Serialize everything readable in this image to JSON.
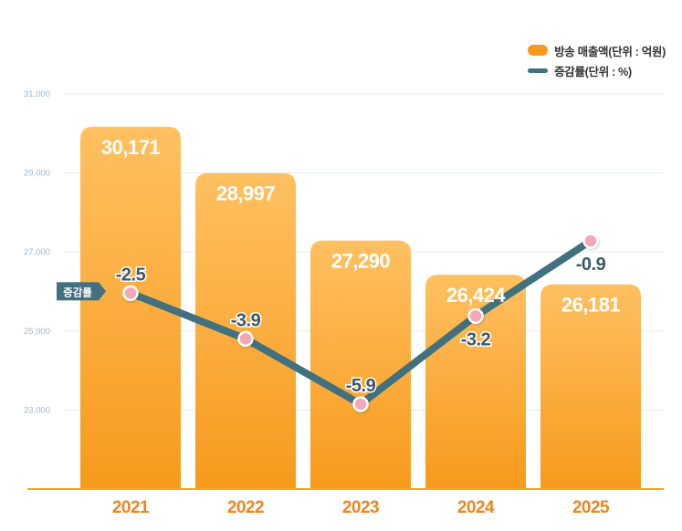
{
  "chart_data": {
    "type": "bar",
    "categories": [
      "2021",
      "2022",
      "2023",
      "2024",
      "2025"
    ],
    "series": [
      {
        "name": "방송 매출액(단위 : 억원)",
        "type": "bar",
        "axis": "left",
        "values": [
          30171,
          28997,
          27290,
          26424,
          26181
        ],
        "labels": [
          "30,171",
          "28,997",
          "27,290",
          "26,424",
          "26,181"
        ]
      },
      {
        "name": "증감률(단위 : %)",
        "type": "line",
        "axis": "secondary",
        "values": [
          -2.5,
          -3.9,
          -5.9,
          -3.2,
          -0.9
        ],
        "labels": [
          "-2.5",
          "-3.9",
          "-5.9",
          "-3.2",
          "-0.9"
        ]
      }
    ],
    "ylim": [
      21000,
      31000
    ],
    "yticks": [
      "31,000",
      "29,000",
      "27,000",
      "25,000",
      "23,000"
    ],
    "ytick_values": [
      31000,
      29000,
      27000,
      25000,
      23000
    ],
    "secondary_ylim": [
      -8.5,
      3.6
    ],
    "line_tag": "증감률",
    "grid": true,
    "legend_position": "top-right",
    "colors": {
      "bar_light": "#ffc061",
      "bar_dark": "#f79a1c",
      "line": "#41707f",
      "marker_fill": "#f5a6b8",
      "marker_stroke": "#ffffff",
      "axis_text": "#9fb6c7",
      "grid": "#e5edf2",
      "baseline": "#f5a623",
      "category_text": "#f0851a",
      "bar_label": "#ffffff",
      "line_label": "#3f5664",
      "tag_bg": "#41707f",
      "tag_text": "#ffffff"
    }
  }
}
